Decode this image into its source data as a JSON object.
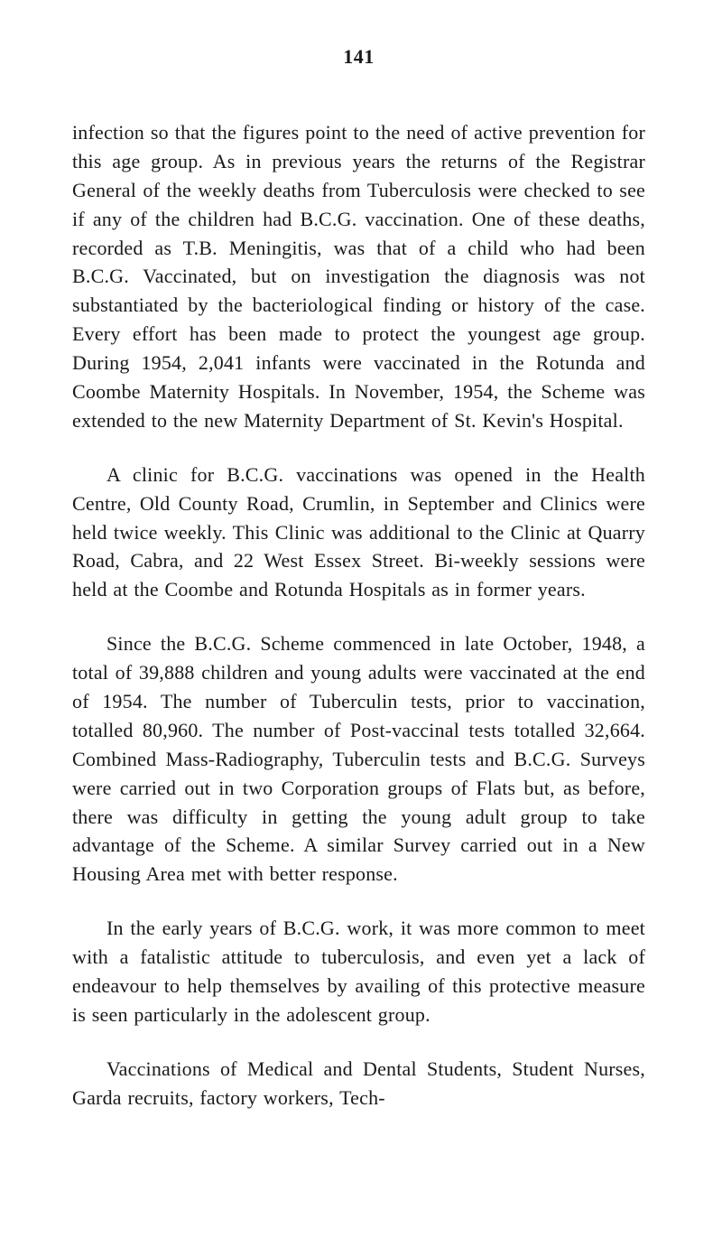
{
  "page_number": "141",
  "paragraphs": [
    {
      "text": "infection so that the figures point to the need of active prevention for this age group. As in previous years the returns of the Registrar General of the weekly deaths from Tuberculosis were checked to see if any of the children had B.C.G. vaccination. One of these deaths, recorded as T.B. Meningitis, was that of a child who had been B.C.G. Vaccinated, but on investigation the diagnosis was not substantiated by the bacteriological finding or history of the case. Every effort has been made to protect the youngest age group. During 1954, 2,041 infants were vaccinated in the Rotunda and Coombe Maternity Hospitals. In November, 1954, the Scheme was extended to the new Maternity Department of St. Kevin's Hospital.",
      "indented": false
    },
    {
      "text": "A clinic for B.C.G. vaccinations was opened in the Health Centre, Old County Road, Crumlin, in September and Clinics were held twice weekly. This Clinic was additional to the Clinic at Quarry Road, Cabra, and 22 West Essex Street. Bi-weekly sessions were held at the Coombe and Rotunda Hospitals as in former years.",
      "indented": true
    },
    {
      "text": "Since the B.C.G. Scheme commenced in late October, 1948, a total of 39,888 children and young adults were vaccinated at the end of 1954. The number of Tuberculin tests, prior to vaccination, totalled 80,960. The number of Post-vaccinal tests totalled 32,664. Combined Mass-Radiography, Tuberculin tests and B.C.G. Surveys were carried out in two Corporation groups of Flats but, as before, there was difficulty in getting the young adult group to take advantage of the Scheme. A similar Survey carried out in a New Housing Area met with better response.",
      "indented": true
    },
    {
      "text": "In the early years of B.C.G. work, it was more common to meet with a fatalistic attitude to tuberculosis, and even yet a lack of endeavour to help themselves by availing of this protective measure is seen particularly in the adolescent group.",
      "indented": true
    },
    {
      "text": "Vaccinations of Medical and Dental Students, Student Nurses, Garda recruits, factory workers, Tech-",
      "indented": true
    }
  ],
  "colors": {
    "background": "#ffffff",
    "text": "#1a1a1a"
  },
  "typography": {
    "font_family": "Times New Roman",
    "body_font_size": 22,
    "page_number_font_size": 22,
    "line_height": 1.45
  }
}
